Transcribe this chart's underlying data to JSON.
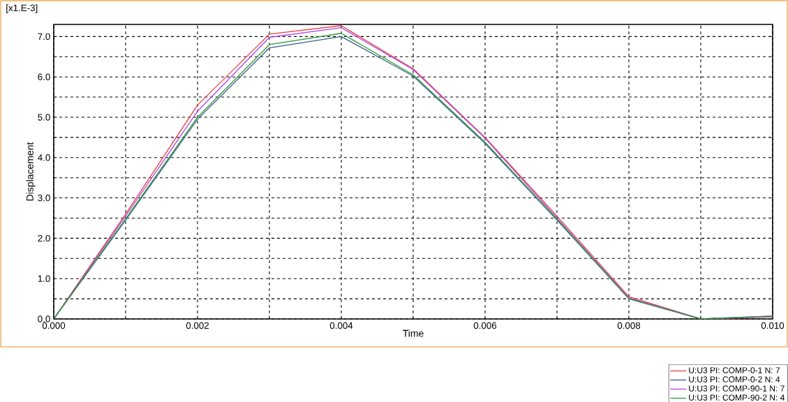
{
  "chart_data": {
    "type": "line",
    "xlabel": "Time",
    "ylabel": "Displacement",
    "annotations": [
      "[x1.E-3]"
    ],
    "x": [
      0,
      0.001,
      0.002,
      0.003,
      0.004,
      0.005,
      0.006,
      0.007,
      0.008,
      0.009,
      0.01
    ],
    "series": [
      {
        "name": "U:U3 PI: COMP-0-1 N: 7",
        "color": "#e8404a",
        "values": [
          0,
          2.6,
          5.3,
          7.06,
          7.27,
          6.2,
          4.5,
          2.55,
          0.55,
          0,
          0.05
        ]
      },
      {
        "name": "U:U3 PI: COMP-0-2 N: 4",
        "color": "#3a5f8a",
        "values": [
          0,
          2.45,
          4.95,
          6.72,
          7.0,
          6.02,
          4.35,
          2.45,
          0.5,
          0,
          0.07
        ]
      },
      {
        "name": "U:U3 PI: COMP-90-1 N: 7",
        "color": "#b048e0",
        "values": [
          0,
          2.55,
          5.15,
          6.98,
          7.22,
          6.18,
          4.48,
          2.5,
          0.52,
          0,
          0.06
        ]
      },
      {
        "name": "U:U3 PI: COMP-90-2 N: 4",
        "color": "#2e9a3a",
        "values": [
          0,
          2.48,
          5.0,
          6.8,
          7.08,
          6.05,
          4.38,
          2.47,
          0.5,
          0,
          0.07
        ]
      }
    ],
    "xlim": [
      0,
      0.01
    ],
    "ylim": [
      0,
      7.3
    ],
    "xticks": [
      {
        "value": 0,
        "label": "0.000"
      },
      {
        "value": 0.001,
        "label": null
      },
      {
        "value": 0.002,
        "label": "0.002"
      },
      {
        "value": 0.003,
        "label": null
      },
      {
        "value": 0.004,
        "label": "0.004"
      },
      {
        "value": 0.005,
        "label": null
      },
      {
        "value": 0.006,
        "label": "0.006"
      },
      {
        "value": 0.007,
        "label": null
      },
      {
        "value": 0.008,
        "label": "0.008"
      },
      {
        "value": 0.009,
        "label": null
      },
      {
        "value": 0.01,
        "label": "0.010"
      }
    ],
    "yticks": [
      {
        "value": 0,
        "label": "0.0"
      },
      {
        "value": 0.5,
        "label": null
      },
      {
        "value": 1,
        "label": "1.0"
      },
      {
        "value": 1.5,
        "label": null
      },
      {
        "value": 2,
        "label": "2.0"
      },
      {
        "value": 2.5,
        "label": null
      },
      {
        "value": 3,
        "label": "3.0"
      },
      {
        "value": 3.5,
        "label": null
      },
      {
        "value": 4,
        "label": "4.0"
      },
      {
        "value": 4.5,
        "label": null
      },
      {
        "value": 5,
        "label": "5.0"
      },
      {
        "value": 5.5,
        "label": null
      },
      {
        "value": 6,
        "label": "6.0"
      },
      {
        "value": 6.5,
        "label": null
      },
      {
        "value": 7,
        "label": "7.0"
      }
    ],
    "grid": true,
    "legend": "bottom right",
    "line_style": "solid",
    "marker": "none"
  }
}
